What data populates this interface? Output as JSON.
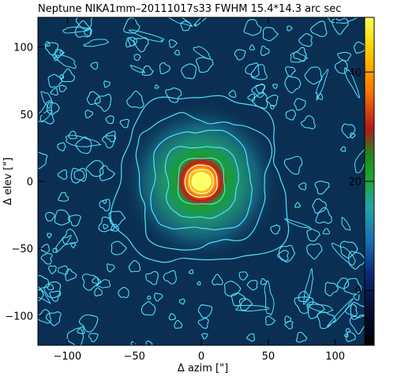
{
  "chart_data": {
    "type": "heatmap",
    "title": "Neptune NIKA1mm–20111017s33    FWHM 15.4*14.3 arc sec",
    "xlabel": "Δ azim [\"]",
    "ylabel": "Δ elev [\"]",
    "xlim": [
      -122,
      122
    ],
    "ylim": [
      -122,
      122
    ],
    "x_ticks": [
      -100,
      -50,
      0,
      50,
      100
    ],
    "y_ticks": [
      -100,
      -50,
      0,
      50,
      100
    ],
    "x_tick_labels": [
      "−100",
      "−50",
      "0",
      "50",
      "100"
    ],
    "y_tick_labels": [
      "−100",
      "−50",
      "0",
      "50",
      "100"
    ],
    "colorbar": {
      "range": [
        -10,
        50
      ],
      "ticks": [
        0,
        20,
        40
      ],
      "tick_labels": [
        "0",
        "20",
        "40"
      ],
      "colormap": [
        "#000000",
        "#0a1d6e",
        "#1a6fb3",
        "#27b3a0",
        "#1aa52a",
        "#b21a1a",
        "#ff7700",
        "#ffdd00",
        "#ffff66"
      ]
    },
    "source": {
      "x": 0,
      "y": 0,
      "peak": 48,
      "fwhm_x": 15.4,
      "fwhm_y": 14.3
    },
    "contour_levels": [
      0.5,
      2,
      5,
      10,
      20,
      30,
      40
    ],
    "colors": {
      "background": "#ffffff",
      "contour": "#4fe2ff",
      "map_base": "#0a2f52"
    }
  }
}
